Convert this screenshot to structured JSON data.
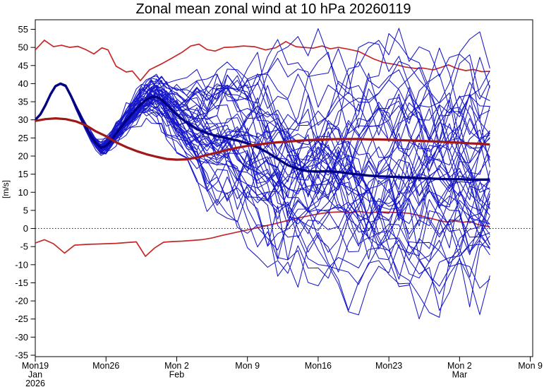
{
  "title": "Zonal mean zonal wind at 10 hPa 20260119",
  "chart_data": {
    "type": "line",
    "title": "Zonal mean zonal wind at 10 hPa 20260119",
    "xlabel": "",
    "ylabel": "[m/s]",
    "ylim": [
      -35,
      55
    ],
    "ytick_step": 5,
    "yticks": [
      -35,
      -30,
      -25,
      -20,
      -15,
      -10,
      -5,
      0,
      5,
      10,
      15,
      20,
      25,
      30,
      35,
      40,
      45,
      50,
      55
    ],
    "grid": false,
    "zero_line_value": 0,
    "x_axis": {
      "units": "days since 19 Jan 2026",
      "domain_days": [
        0,
        49.3
      ],
      "data_end_day": 45,
      "ticks": [
        {
          "day": 0,
          "lines": [
            "Mon19",
            "Jan",
            "2026"
          ]
        },
        {
          "day": 7,
          "lines": [
            "Mon26"
          ]
        },
        {
          "day": 14,
          "lines": [
            "Mon 2",
            "Feb"
          ]
        },
        {
          "day": 21,
          "lines": [
            "Mon 9"
          ]
        },
        {
          "day": 28,
          "lines": [
            "Mon16"
          ]
        },
        {
          "day": 35,
          "lines": [
            "Mon23"
          ]
        },
        {
          "day": 42,
          "lines": [
            "Mon 2",
            "Mar"
          ]
        },
        {
          "day": 49,
          "lines": [
            "Mon 9"
          ]
        }
      ]
    },
    "colors": {
      "ensemble_member": "#1717c9",
      "ensemble_mean": "#000080",
      "climatology_mean": "#a01818",
      "climatology_extreme": "#c62828",
      "zero_line": "#222222",
      "frame": "#000000"
    },
    "series": [
      {
        "name": "ensemble-mean",
        "color": "#000080",
        "width": 3.4,
        "x": [
          0,
          0.5,
          1,
          1.5,
          2,
          2.5,
          3,
          3.5,
          4,
          4.5,
          5,
          5.5,
          6,
          6.5,
          7,
          7.5,
          8,
          8.5,
          9,
          9.5,
          10,
          10.5,
          11,
          11.5,
          12,
          12.5,
          13,
          14,
          15,
          16,
          17,
          18,
          19,
          20,
          21,
          22,
          23,
          24,
          25,
          26,
          27,
          28,
          29,
          30,
          31,
          32,
          33,
          34,
          35,
          36,
          37,
          38,
          39,
          40,
          41,
          42,
          43,
          44,
          45
        ],
        "values": [
          30,
          31.5,
          34,
          37,
          39.3,
          40,
          39.4,
          36.8,
          33.8,
          30.8,
          28,
          25.6,
          23.6,
          22.3,
          22.8,
          24.2,
          26.2,
          28,
          29.8,
          31.4,
          33,
          34.4,
          35.5,
          36.3,
          36.4,
          35.6,
          34.2,
          31.4,
          29.2,
          27.4,
          26.3,
          25.5,
          24.9,
          24.3,
          23.5,
          22.4,
          21,
          19.2,
          17.5,
          16.4,
          15.8,
          15.7,
          15.8,
          15.6,
          15.2,
          14.9,
          14.6,
          14.4,
          14.3,
          14.2,
          14,
          13.9,
          13.8,
          13.7,
          13.6,
          13.6,
          13.5,
          13.5,
          13.5
        ]
      },
      {
        "name": "climatology-mean",
        "color": "#a01818",
        "width": 3.2,
        "x": [
          0,
          1,
          2,
          3,
          4,
          5,
          6,
          7,
          8,
          9,
          10,
          11,
          12,
          13,
          14,
          15,
          16,
          17,
          18,
          19,
          20,
          21,
          22,
          23,
          24,
          25,
          26,
          27,
          28,
          29,
          30,
          31,
          32,
          33,
          34,
          35,
          36,
          37,
          38,
          39,
          40,
          41,
          42,
          43,
          44,
          45
        ],
        "values": [
          29.7,
          30.2,
          30.4,
          30.2,
          29.6,
          28.5,
          26.8,
          25.5,
          23.8,
          22.5,
          21.4,
          20.5,
          19.8,
          19.2,
          19,
          19.1,
          19.6,
          20.3,
          21,
          21.7,
          22.3,
          22.8,
          23.2,
          23.5,
          23.8,
          24,
          24.2,
          24.4,
          24.5,
          24.6,
          24.7,
          24.7,
          24.7,
          24.6,
          24.6,
          24.5,
          24.4,
          24.3,
          24.2,
          24.1,
          24,
          23.8,
          23.7,
          23.5,
          23.4,
          23.2
        ]
      },
      {
        "name": "climatology-max",
        "color": "#c62828",
        "width": 1.7,
        "x": [
          0,
          0.9,
          1.8,
          2.6,
          3.4,
          4.2,
          5,
          5.8,
          6.6,
          7.2,
          8,
          9,
          9.6,
          10.4,
          11.3,
          12.4,
          13.5,
          14.5,
          15.4,
          16.2,
          17,
          17.8,
          18.7,
          19.6,
          20.6,
          21.7,
          22.8,
          23.8,
          24.8,
          25.8,
          26.6,
          27.5,
          28.4,
          29.2,
          30,
          31,
          32,
          33.5,
          34.5,
          35.6,
          36.6,
          37.6,
          38.4,
          39.4,
          40.3,
          40.9,
          41.7,
          42.6,
          43.4,
          44.2,
          45
        ],
        "values": [
          49.3,
          52,
          50.2,
          50.6,
          50,
          50.3,
          49.4,
          48.2,
          49.9,
          49.3,
          44.8,
          43.2,
          43.5,
          40.8,
          43.8,
          45.3,
          47,
          48.6,
          50.4,
          50.9,
          49.4,
          49,
          50,
          50.1,
          50.4,
          50.2,
          49.3,
          49.9,
          51.6,
          50.2,
          50,
          49.8,
          50.4,
          49.6,
          50,
          49.5,
          48.9,
          46.8,
          45.8,
          45.3,
          44.6,
          44.2,
          44.3,
          43.8,
          44.6,
          45.2,
          44.2,
          43.6,
          43.9,
          43.3,
          43.4
        ]
      },
      {
        "name": "climatology-min",
        "color": "#c62828",
        "width": 1.7,
        "x": [
          0,
          0.9,
          1.8,
          2.9,
          3.9,
          5,
          6,
          7,
          8,
          9,
          10,
          10.9,
          11.8,
          12.7,
          13.6,
          14.5,
          15.5,
          16.5,
          17.5,
          18.5,
          19.5,
          20.5,
          21.5,
          22.4,
          23.4,
          24.4,
          25.4,
          26.4,
          27.4,
          28.4,
          29.4,
          30.3,
          31.2,
          32.1,
          33,
          34,
          35,
          36,
          37,
          38,
          39,
          40,
          40.7,
          41.5,
          42.3,
          43,
          43.7,
          44.3,
          45
        ],
        "values": [
          -4,
          -3.1,
          -4.2,
          -6.8,
          -4.6,
          -4.4,
          -4.3,
          -4.2,
          -4.1,
          -3.9,
          -3.7,
          -7.7,
          -5.4,
          -3.8,
          -3.6,
          -3.5,
          -3.3,
          -3.1,
          -2.6,
          -1.9,
          -1.3,
          -0.7,
          -0.1,
          0.5,
          1.1,
          1.8,
          2.5,
          3.1,
          3.7,
          4.2,
          4.5,
          4.6,
          4.4,
          4.7,
          4.3,
          4.6,
          4.5,
          4.4,
          4.2,
          3.6,
          2.9,
          2.2,
          1.8,
          2.1,
          1.7,
          2,
          1.2,
          0.8,
          0.5
        ]
      }
    ],
    "ensemble": {
      "count": 51,
      "color": "#1717c9",
      "width": 1.05,
      "seed": 20260119,
      "end_day": 45,
      "spread_amplitude_by_day": [
        0.3,
        0.3,
        0.3,
        0.4,
        0.7,
        1.1,
        1.5,
        2,
        2.6,
        3.2,
        3.8,
        4.4,
        5.5,
        7,
        9,
        11,
        13.5,
        16,
        18,
        20,
        21.5,
        23,
        24,
        25,
        26,
        26.5,
        27,
        27.5,
        28,
        28.2,
        28.4,
        28.5,
        28.6,
        28.7,
        28.8,
        28.9,
        29,
        29.1,
        29.2,
        29.3,
        29.4,
        29.5,
        29.6,
        29.7,
        29.8,
        29.9
      ],
      "jitter_by_day": [
        0,
        0,
        0,
        0,
        0.2,
        0.3,
        0.4,
        0.5,
        0.6,
        0.8,
        1,
        1.2,
        1.5,
        1.8,
        2.1,
        2.4,
        2.7,
        3,
        3.2,
        3.4,
        3.6,
        3.7,
        3.8,
        3.9,
        4,
        4,
        4,
        4,
        4,
        4,
        4,
        4,
        4,
        4,
        4,
        4,
        4,
        4,
        4,
        4,
        4,
        4,
        4,
        4,
        4,
        4
      ],
      "value_clamp": [
        -34.2,
        55.3
      ]
    }
  }
}
